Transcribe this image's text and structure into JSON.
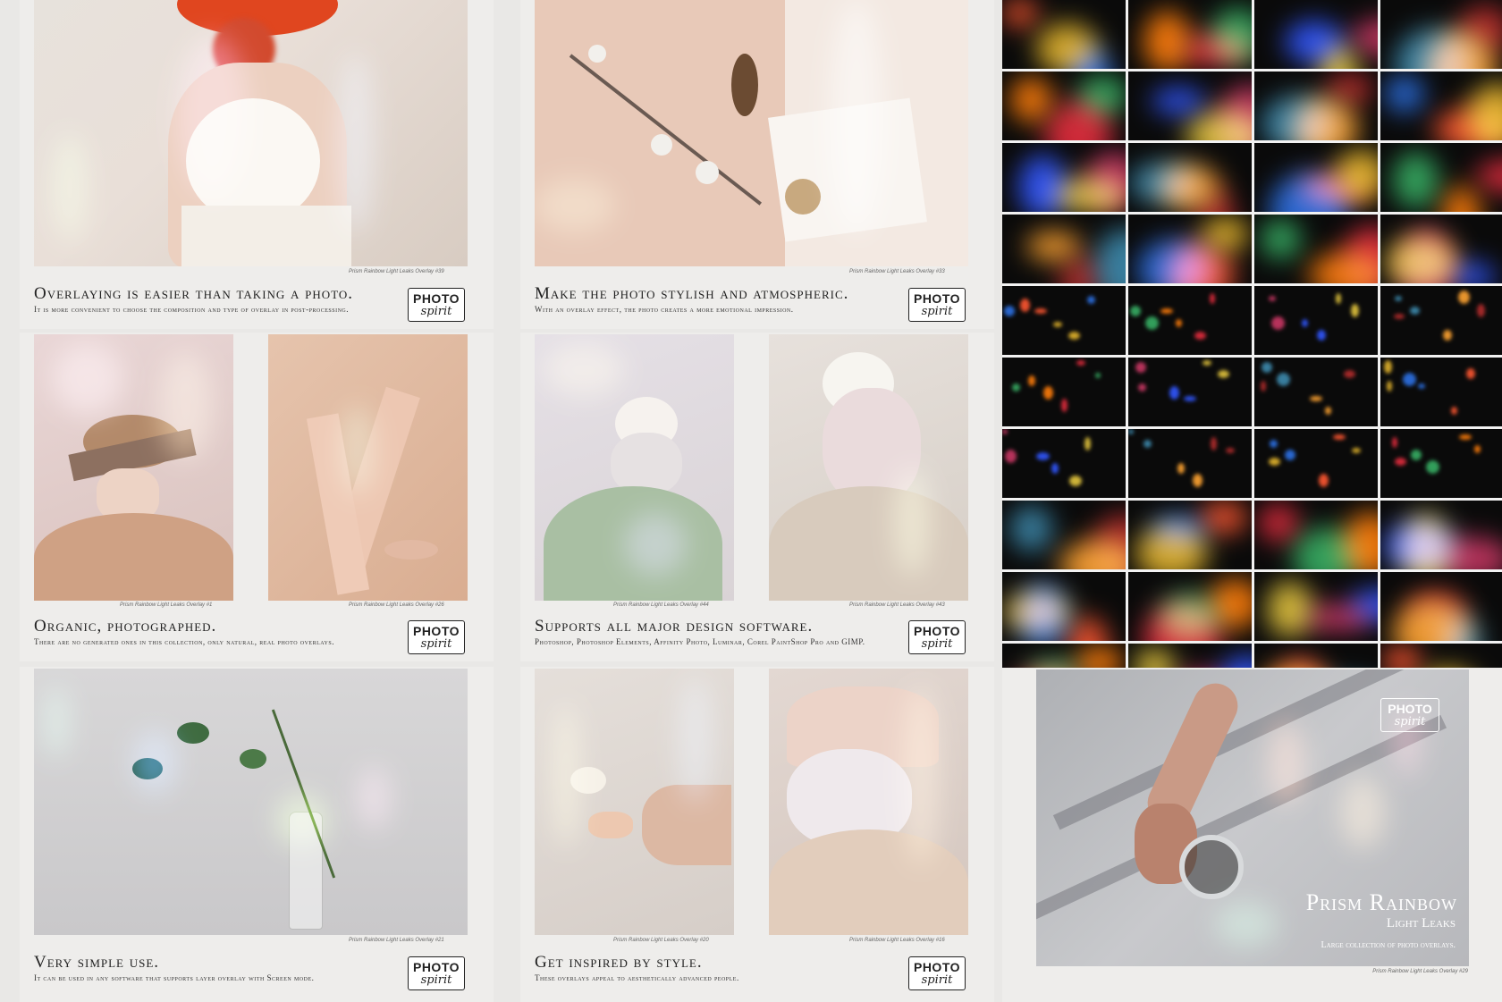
{
  "panels": [
    {
      "title": "Overlaying is easier than taking a photo.",
      "subtitle": "It is more convenient to choose the composition and type of overlay in post-processing.",
      "captions": [
        "Prism Rainbow Light Leaks Overlay #39"
      ]
    },
    {
      "title": "Make the photo stylish and atmospheric.",
      "subtitle": "With an overlay effect, the photo creates a more emotional impression.",
      "captions": [
        "Prism Rainbow Light Leaks Overlay #33"
      ]
    },
    {
      "title": "Organic, photographed.",
      "subtitle": "There are no generated ones in this collection, only natural, real photo overlays.",
      "captions": [
        "Prism Rainbow Light Leaks Overlay #1",
        "Prism Rainbow Light Leaks Overlay #26"
      ]
    },
    {
      "title": "Supports all major design software.",
      "subtitle": "Photoshop, Photoshop Elements, Affinity Photo, Luminar, Corel PaintShop Pro and GIMP.",
      "captions": [
        "Prism Rainbow Light Leaks Overlay #44",
        "Prism Rainbow Light Leaks Overlay #43"
      ]
    },
    {
      "title": "Very simple use.",
      "subtitle": "It can be used in any software that supports layer overlay with Screen mode.",
      "captions": [
        "Prism Rainbow Light Leaks Overlay #21"
      ]
    },
    {
      "title": "Get inspired by style.",
      "subtitle": "These overlays appeal to aesthetically advanced people.",
      "captions": [
        "Prism Rainbow Light Leaks Overlay #20",
        "Prism Rainbow Light Leaks Overlay #16"
      ]
    }
  ],
  "logo": {
    "line1": "PHOTO",
    "line2": "spirit"
  },
  "feature": {
    "title": "Prism Rainbow",
    "subtitle": "Light Leaks",
    "tagline": "Large collection of photo overlays.",
    "caption": "Prism Rainbow Light Leaks Overlay #29"
  },
  "colors": {
    "background": "#e9e8e6",
    "panel": "#eeedeb",
    "text": "#222222",
    "grid_bg": "#0a0a0a"
  }
}
